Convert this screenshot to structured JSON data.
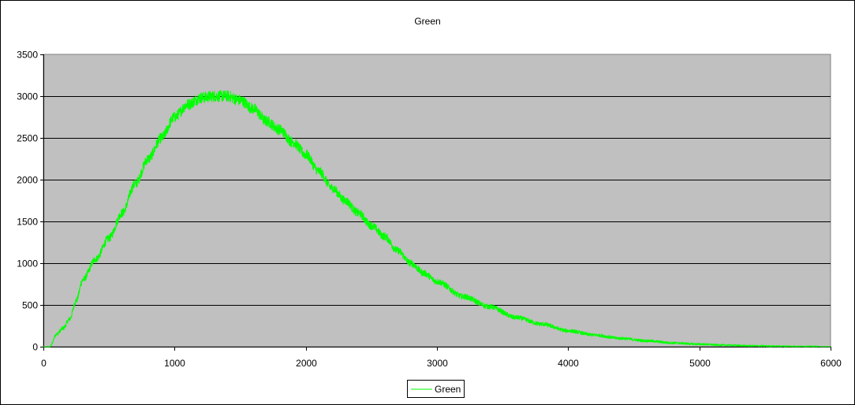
{
  "chart_data": {
    "type": "line",
    "title": "Green",
    "xlabel": "",
    "ylabel": "",
    "xlim": [
      0,
      6000
    ],
    "ylim": [
      0,
      3500
    ],
    "xticks": [
      0,
      1000,
      2000,
      3000,
      4000,
      5000,
      6000
    ],
    "yticks": [
      0,
      500,
      1000,
      1500,
      2000,
      2500,
      3000,
      3500
    ],
    "grid": "horizontal",
    "legend_position": "bottom",
    "plot_background": "#c0c0c0",
    "series": [
      {
        "name": "Green",
        "color": "#00ff00",
        "x": [
          0,
          50,
          100,
          150,
          200,
          250,
          300,
          400,
          500,
          600,
          700,
          800,
          900,
          1000,
          1100,
          1200,
          1300,
          1400,
          1500,
          1600,
          1700,
          1800,
          1900,
          2000,
          2100,
          2200,
          2300,
          2400,
          2500,
          2600,
          2700,
          2800,
          2900,
          3000,
          3200,
          3400,
          3600,
          3800,
          4000,
          4200,
          4400,
          4600,
          4800,
          5000,
          5200,
          5400,
          5600,
          5800,
          6000
        ],
        "values": [
          0,
          0,
          150,
          220,
          330,
          550,
          800,
          1050,
          1300,
          1600,
          1950,
          2250,
          2500,
          2750,
          2900,
          2980,
          3000,
          3000,
          2950,
          2850,
          2700,
          2600,
          2450,
          2300,
          2100,
          1900,
          1750,
          1600,
          1450,
          1320,
          1150,
          1000,
          880,
          780,
          600,
          480,
          350,
          270,
          190,
          140,
          100,
          70,
          45,
          30,
          18,
          10,
          6,
          3,
          1
        ]
      }
    ]
  }
}
